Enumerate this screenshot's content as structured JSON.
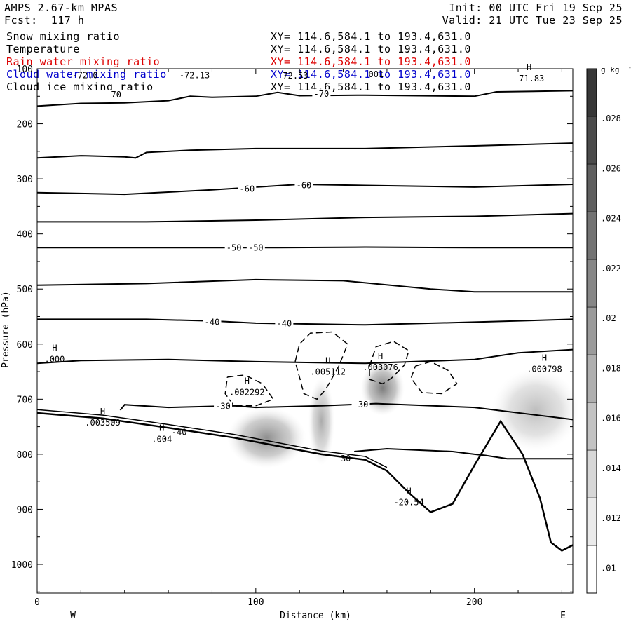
{
  "header": {
    "model": "AMPS 2.67-km MPAS",
    "forecast": "Fcst:  117 h",
    "init": "Init: 00 UTC Fri 19 Sep 25",
    "valid": "Valid: 21 UTC Tue 23 Sep 25"
  },
  "legend": [
    {
      "label": "Snow mixing ratio",
      "xy": "XY= 114.6,584.1 to 193.4,631.0",
      "color": "#000000"
    },
    {
      "label": "Temperature",
      "xy": "XY= 114.6,584.1 to 193.4,631.0",
      "color": "#000000"
    },
    {
      "label": "Rain water mixing ratio",
      "xy": "XY= 114.6,584.1 to 193.4,631.0",
      "color": "#dd0000"
    },
    {
      "label": "Cloud water mixing ratio",
      "xy": "XY= 114.6,584.1 to 193.4,631.0",
      "color": "#0000cc"
    },
    {
      "label": "Cloud ice mixing ratio",
      "xy": "XY= 114.6,584.1 to 193.4,631.0",
      "color": "#000000"
    }
  ],
  "chart_data": {
    "type": "contour-cross-section",
    "xlabel": "Distance (km)",
    "ylabel": "Pressure (hPa)",
    "xlim": [
      0,
      245
    ],
    "ylim": [
      1050,
      100
    ],
    "x_ticks": [
      0,
      100,
      200
    ],
    "y_ticks": [
      100,
      200,
      300,
      400,
      500,
      600,
      700,
      800,
      900,
      1000
    ],
    "side_labels": {
      "west": "W",
      "east": "E"
    },
    "colorbar": {
      "unit": "g kg",
      "unit_exponent": "-1",
      "ticks": [
        ".01",
        ".012",
        ".014",
        ".016",
        ".018",
        ".02",
        ".022",
        ".024",
        ".026",
        ".028"
      ],
      "range": [
        0.009,
        0.03
      ]
    },
    "temperature_contours": [
      {
        "points": [
          [
            0,
            168
          ],
          [
            20,
            163
          ],
          [
            40,
            162
          ],
          [
            60,
            158
          ],
          [
            70,
            150
          ],
          [
            80,
            152
          ],
          [
            100,
            150
          ],
          [
            110,
            143
          ],
          [
            120,
            149
          ],
          [
            150,
            148
          ],
          [
            200,
            150
          ],
          [
            210,
            142
          ],
          [
            245,
            140
          ]
        ],
        "labels": [
          {
            "x": 35,
            "p": 147,
            "text": "-70"
          },
          {
            "x": 130,
            "p": 146,
            "text": "-70"
          }
        ]
      },
      {
        "points": [
          [
            0,
            262
          ],
          [
            20,
            258
          ],
          [
            40,
            260
          ],
          [
            45,
            262
          ],
          [
            50,
            252
          ],
          [
            70,
            248
          ],
          [
            100,
            245
          ],
          [
            150,
            245
          ],
          [
            200,
            240
          ],
          [
            245,
            235
          ]
        ],
        "labels": []
      },
      {
        "points": [
          [
            0,
            325
          ],
          [
            40,
            328
          ],
          [
            80,
            320
          ],
          [
            100,
            315
          ],
          [
            120,
            310
          ],
          [
            150,
            312
          ],
          [
            200,
            315
          ],
          [
            245,
            310
          ]
        ],
        "labels": [
          {
            "x": 96,
            "p": 318,
            "text": "-60"
          },
          {
            "x": 122,
            "p": 312,
            "text": "-60"
          }
        ]
      },
      {
        "points": [
          [
            0,
            378
          ],
          [
            50,
            378
          ],
          [
            100,
            375
          ],
          [
            150,
            370
          ],
          [
            200,
            368
          ],
          [
            245,
            363
          ]
        ],
        "labels": []
      },
      {
        "points": [
          [
            0,
            425
          ],
          [
            50,
            425
          ],
          [
            90,
            425
          ],
          [
            110,
            425
          ],
          [
            150,
            424
          ],
          [
            200,
            425
          ],
          [
            245,
            425
          ]
        ],
        "labels": [
          {
            "x": 90,
            "p": 425,
            "text": "-50"
          },
          {
            "x": 100,
            "p": 425,
            "text": "-50"
          }
        ]
      },
      {
        "points": [
          [
            0,
            493
          ],
          [
            50,
            490
          ],
          [
            100,
            483
          ],
          [
            140,
            485
          ],
          [
            180,
            500
          ],
          [
            200,
            505
          ],
          [
            245,
            505
          ]
        ],
        "labels": []
      },
      {
        "points": [
          [
            0,
            555
          ],
          [
            50,
            555
          ],
          [
            80,
            558
          ],
          [
            100,
            562
          ],
          [
            150,
            565
          ],
          [
            200,
            560
          ],
          [
            245,
            555
          ]
        ],
        "labels": [
          {
            "x": 80,
            "p": 560,
            "text": "-40"
          },
          {
            "x": 113,
            "p": 563,
            "text": "-40"
          }
        ]
      },
      {
        "points": [
          [
            0,
            635
          ],
          [
            20,
            630
          ],
          [
            60,
            628
          ],
          [
            100,
            632
          ],
          [
            150,
            635
          ],
          [
            200,
            628
          ],
          [
            220,
            616
          ],
          [
            245,
            610
          ]
        ],
        "labels": []
      },
      {
        "points": [
          [
            38,
            720
          ],
          [
            40,
            710
          ],
          [
            60,
            715
          ],
          [
            90,
            712
          ],
          [
            100,
            715
          ],
          [
            130,
            712
          ],
          [
            155,
            708
          ],
          [
            200,
            715
          ],
          [
            245,
            737
          ]
        ],
        "labels": [
          {
            "x": 85,
            "p": 713,
            "text": "-30"
          },
          {
            "x": 148,
            "p": 710,
            "text": "-30"
          }
        ]
      },
      {
        "points": [
          [
            145,
            795
          ],
          [
            160,
            790
          ],
          [
            190,
            795
          ],
          [
            200,
            800
          ],
          [
            205,
            802
          ],
          [
            215,
            808
          ],
          [
            245,
            808
          ]
        ],
        "labels": []
      }
    ],
    "terrain": [
      [
        0,
        725
      ],
      [
        30,
        735
      ],
      [
        60,
        752
      ],
      [
        90,
        770
      ],
      [
        110,
        785
      ],
      [
        130,
        800
      ],
      [
        150,
        810
      ],
      [
        160,
        830
      ],
      [
        170,
        870
      ],
      [
        180,
        905
      ],
      [
        190,
        890
      ],
      [
        200,
        820
      ],
      [
        212,
        740
      ],
      [
        222,
        800
      ],
      [
        230,
        880
      ],
      [
        235,
        960
      ],
      [
        240,
        975
      ],
      [
        245,
        965
      ]
    ],
    "cloud_ice_contours": [
      {
        "points": [
          [
            118,
            632
          ],
          [
            120,
            600
          ],
          [
            125,
            580
          ],
          [
            135,
            578
          ],
          [
            142,
            600
          ],
          [
            138,
            640
          ],
          [
            132,
            682
          ],
          [
            128,
            700
          ],
          [
            122,
            690
          ],
          [
            120,
            660
          ],
          [
            118,
            632
          ]
        ]
      },
      {
        "points": [
          [
            152,
            640
          ],
          [
            155,
            605
          ],
          [
            163,
            595
          ],
          [
            170,
            612
          ],
          [
            168,
            638
          ],
          [
            162,
            662
          ],
          [
            158,
            672
          ],
          [
            152,
            664
          ],
          [
            152,
            640
          ]
        ]
      },
      {
        "points": [
          [
            173,
            640
          ],
          [
            180,
            632
          ],
          [
            188,
            648
          ],
          [
            192,
            672
          ],
          [
            185,
            690
          ],
          [
            176,
            688
          ],
          [
            171,
            662
          ],
          [
            173,
            640
          ]
        ]
      },
      {
        "points": [
          [
            87,
            660
          ],
          [
            95,
            656
          ],
          [
            103,
            672
          ],
          [
            108,
            700
          ],
          [
            100,
            712
          ],
          [
            90,
            712
          ],
          [
            86,
            690
          ],
          [
            87,
            660
          ]
        ]
      }
    ],
    "maxima": [
      {
        "x": 8,
        "p": 625,
        "value": ".000"
      },
      {
        "x": 30,
        "p": 740,
        "value": ".003509"
      },
      {
        "x": 133,
        "p": 648,
        "value": ".005112"
      },
      {
        "x": 157,
        "p": 640,
        "value": ".003076"
      },
      {
        "x": 96,
        "p": 685,
        "value": ".002292"
      },
      {
        "x": 232,
        "p": 643,
        "value": ".000798"
      },
      {
        "x": 170,
        "p": 885,
        "value": "-20.54"
      },
      {
        "x": 57,
        "p": 770,
        "value": ".004"
      },
      {
        "x": 225,
        "p": 115,
        "value": "-71.83"
      }
    ],
    "inline_labels": [
      {
        "x": 65,
        "p": 760,
        "text": "-40"
      },
      {
        "x": 140,
        "p": 808,
        "text": "-30"
      },
      {
        "x": 72,
        "p": 112,
        "text": "-72.13"
      },
      {
        "x": 155,
        "p": 110,
        "text": "001",
        "pre": "."
      },
      {
        "x": 22,
        "p": 112,
        "text": "-72.0"
      },
      {
        "x": 117,
        "p": 113,
        "text": "-72.53"
      }
    ],
    "ice_shading": [
      {
        "x": 105,
        "p": 770,
        "rx": 18,
        "rp": 55,
        "opacity": 0.6
      },
      {
        "x": 130,
        "p": 740,
        "rx": 6,
        "rp": 80,
        "opacity": 0.45
      },
      {
        "x": 158,
        "p": 680,
        "rx": 10,
        "rp": 50,
        "opacity": 0.7
      },
      {
        "x": 228,
        "p": 720,
        "rx": 20,
        "rp": 75,
        "opacity": 0.35
      }
    ]
  }
}
